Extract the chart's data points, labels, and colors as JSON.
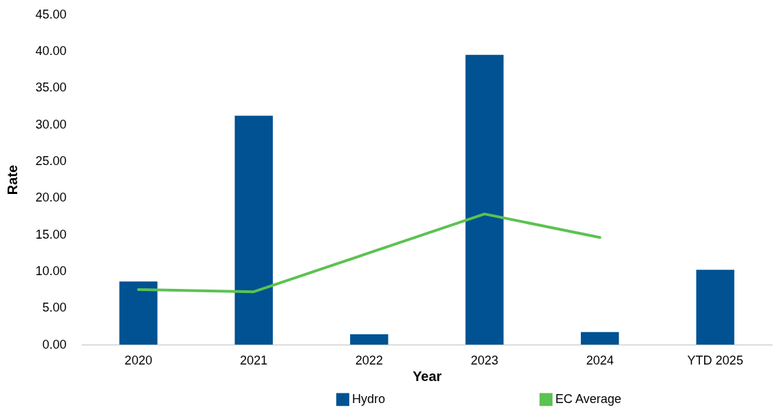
{
  "chart_data": {
    "type": "bar",
    "xlabel": "Year",
    "ylabel": "Rate",
    "categories": [
      "2020",
      "2021",
      "2022",
      "2023",
      "2024",
      "YTD 2025"
    ],
    "series": [
      {
        "name": "Hydro",
        "color": "#005293",
        "values": [
          8.6,
          31.2,
          1.4,
          39.5,
          1.7,
          10.2
        ]
      },
      {
        "name": "EC Average",
        "type": "line",
        "color": "#5cc251",
        "values": [
          7.5,
          7.2,
          12.5,
          17.8,
          14.6,
          null
        ]
      }
    ],
    "ylim": [
      0,
      45
    ],
    "yticks": [
      {
        "value": 0,
        "label": "0.00"
      },
      {
        "value": 5,
        "label": "5.00"
      },
      {
        "value": 10,
        "label": "10.00"
      },
      {
        "value": 15,
        "label": "15.00"
      },
      {
        "value": 20,
        "label": "20.00"
      },
      {
        "value": 25,
        "label": "25.00"
      },
      {
        "value": 30,
        "label": "30.00"
      },
      {
        "value": 35,
        "label": "35.00"
      },
      {
        "value": 40,
        "label": "40.00"
      },
      {
        "value": 45,
        "label": "45.00"
      }
    ],
    "grid": false,
    "legend": "bottom"
  }
}
